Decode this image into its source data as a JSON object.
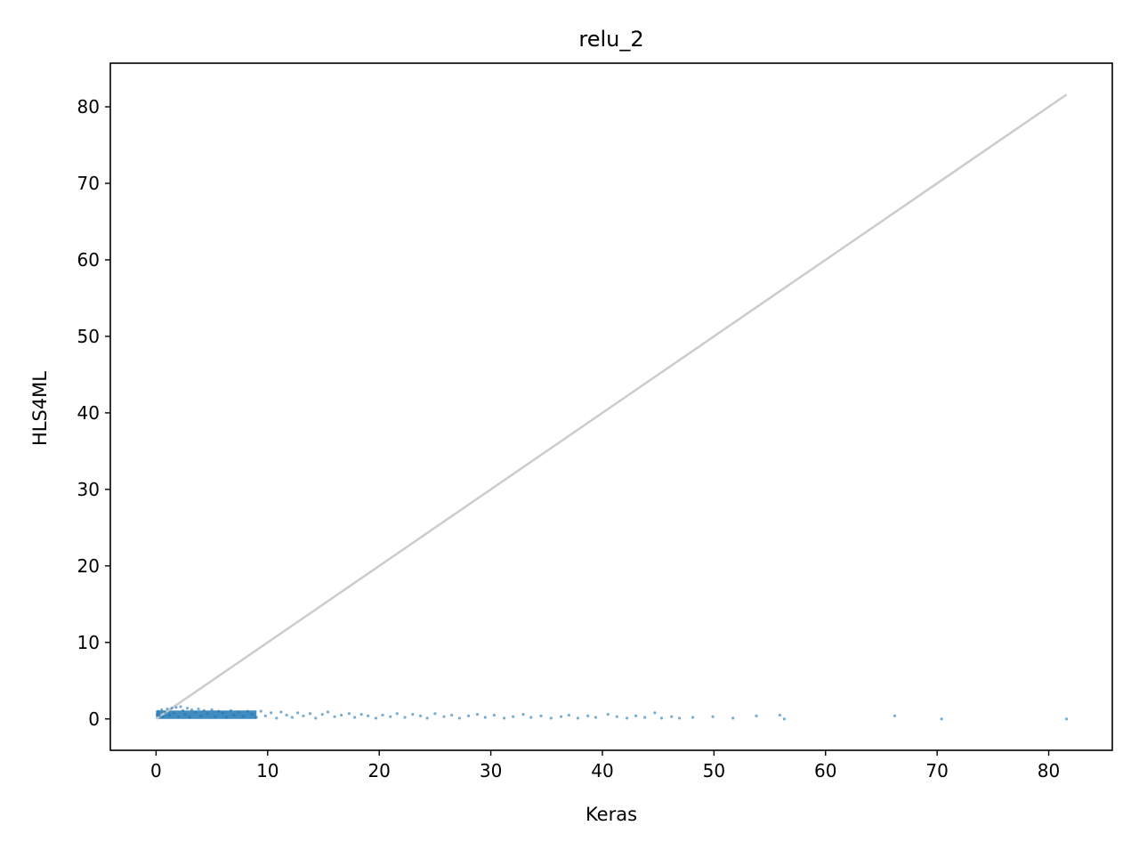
{
  "chart_data": {
    "type": "scatter",
    "title": "relu_2",
    "xlabel": "Keras",
    "ylabel": "HLS4ML",
    "xlim": [
      -4.1,
      85.7
    ],
    "ylim": [
      -4.1,
      85.7
    ],
    "xticks": [
      0,
      10,
      20,
      30,
      40,
      50,
      60,
      70,
      80
    ],
    "yticks": [
      0,
      10,
      20,
      30,
      40,
      50,
      60,
      70,
      80
    ],
    "grid": false,
    "legend": "none",
    "reference_line": {
      "x": [
        0,
        81.6
      ],
      "y": [
        0,
        81.6
      ],
      "color": "#cccccc"
    },
    "point_color": "#1f77b4",
    "series": [
      {
        "x": [
          0.1,
          0.2,
          0.3,
          0.5,
          0.6,
          0.8,
          1.0,
          1.2,
          1.4,
          1.6,
          1.8,
          2.0,
          2.2,
          2.4,
          2.6,
          2.8,
          3.0,
          3.2,
          3.5,
          3.8,
          4.0,
          4.3,
          4.6,
          5.0,
          5.3,
          5.6,
          6.0,
          6.3,
          6.7,
          7.0,
          7.4,
          7.8,
          8.2,
          8.6,
          9.0,
          9.4,
          9.8,
          10.3,
          10.8,
          11.2,
          11.7,
          12.2,
          12.7,
          13.2,
          13.8,
          14.3,
          14.9,
          15.4,
          16.0,
          16.6,
          17.3,
          17.8,
          18.4,
          19.0,
          19.7,
          20.3,
          21.0,
          21.6,
          22.3,
          23.0,
          23.7,
          24.3,
          25.0,
          25.8,
          26.5,
          27.2,
          28.0,
          28.8,
          29.5,
          30.3,
          31.2,
          32.0,
          32.9,
          33.6,
          34.5,
          35.4,
          36.3,
          37.0,
          37.8,
          38.7,
          39.4,
          40.5,
          41.3,
          42.2,
          43.0,
          43.8,
          44.7,
          45.3,
          46.2,
          46.9,
          48.1,
          49.9,
          51.7,
          53.8,
          55.9,
          56.3,
          66.2,
          70.4,
          81.6
        ],
        "y": [
          0.6,
          1.0,
          0.4,
          1.2,
          0.3,
          0.9,
          1.3,
          0.5,
          1.4,
          0.8,
          1.5,
          0.3,
          1.6,
          1.1,
          0.6,
          1.4,
          0.2,
          1.2,
          0.9,
          1.3,
          0.4,
          1.1,
          0.7,
          1.2,
          0.3,
          1.0,
          0.8,
          0.2,
          1.1,
          0.5,
          0.9,
          0.3,
          1.0,
          0.6,
          0.2,
          1.0,
          0.4,
          0.8,
          0.1,
          0.9,
          0.5,
          0.2,
          0.8,
          0.4,
          0.7,
          0.1,
          0.6,
          0.9,
          0.3,
          0.5,
          0.7,
          0.2,
          0.6,
          0.4,
          0.1,
          0.5,
          0.3,
          0.7,
          0.2,
          0.6,
          0.4,
          0.1,
          0.7,
          0.3,
          0.5,
          0.1,
          0.4,
          0.6,
          0.2,
          0.5,
          0.1,
          0.3,
          0.6,
          0.2,
          0.4,
          0.1,
          0.3,
          0.5,
          0.1,
          0.4,
          0.2,
          0.6,
          0.3,
          0.1,
          0.4,
          0.2,
          0.8,
          0.1,
          0.3,
          0.1,
          0.2,
          0.3,
          0.1,
          0.4,
          0.5,
          0.0,
          0.4,
          0.0,
          0.0
        ]
      }
    ]
  }
}
